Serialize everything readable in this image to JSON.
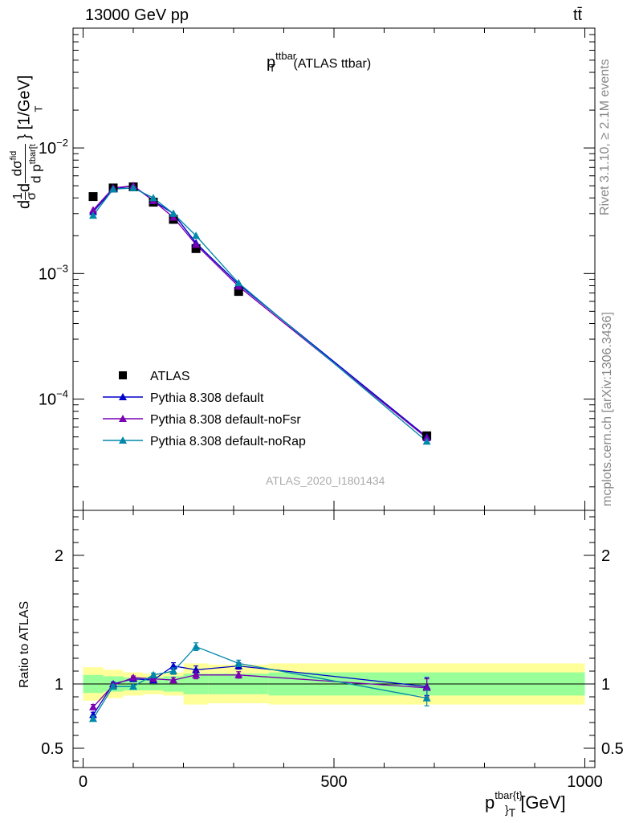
{
  "header": {
    "energy_label": "13000 GeV pp",
    "process_label": "tt̄"
  },
  "side_labels": {
    "rivet": "Rivet 3.1.10, ≥ 2.1M events",
    "mcplots": "mcplots.cern.ch [arXiv:1306.3436]"
  },
  "analysis_label": "ATLAS_2020_I1801434",
  "colors": {
    "atlas": "#000000",
    "default": "#0000cc",
    "noFsr": "#7a00b0",
    "noRap": "#0088aa",
    "band_outer": "#ffff99",
    "band_inner": "#99ff99",
    "analysis_label": "#aaaaaa"
  },
  "chart_data": {
    "type": "line",
    "title": {
      "main": "p",
      "sup": "ttbar",
      "sub": "T",
      "rest": " (ATLAS ttbar)"
    },
    "ylabel": "d1dσdσdp ttbar[t T } [1/GeV]",
    "ylabel_parts": {
      "d": "d",
      "frac1_num": "1",
      "frac1_den": "σ",
      "d2": "d",
      "num": "dσ",
      "num_sup": "fid",
      "den": "d p",
      "den_sub": "tbar[t",
      "den_sup": "T",
      "tail": "} [1/GeV]"
    },
    "xlabel": {
      "main": "p",
      "sup": "tbar{t}",
      "sub": "}",
      "sub2": "T",
      "unit": " [GeV]"
    },
    "ratio_ylabel": "Ratio to ATLAS",
    "xlim": [
      -20,
      1020
    ],
    "ylim": [
      1.3e-05,
      0.09
    ],
    "yscale": "log",
    "ratio_ylim": [
      0.35,
      2.35
    ],
    "x_ticks": [
      0,
      500,
      1000
    ],
    "x_tick_labels": [
      "0",
      "500",
      "1000"
    ],
    "y_ticks": [
      0.0001,
      0.001,
      0.01
    ],
    "y_tick_labels": [
      {
        "base": "10",
        "exp": "−4"
      },
      {
        "base": "10",
        "exp": "−3"
      },
      {
        "base": "10",
        "exp": "−2"
      }
    ],
    "ratio_ticks": [
      0.5,
      1,
      2
    ],
    "ratio_tick_labels": [
      "0.5",
      "1",
      "2"
    ],
    "legend": [
      "ATLAS",
      "Pythia 8.308 default",
      "Pythia 8.308 default-noFsr",
      "Pythia 8.308 default-noRap"
    ],
    "legend_position": "lower-left",
    "bins": [
      0,
      40,
      80,
      120,
      160,
      200,
      250,
      370,
      1000
    ],
    "x": [
      20,
      60,
      100,
      140,
      180,
      225,
      310,
      685
    ],
    "series": [
      {
        "name": "ATLAS",
        "values": [
          0.0041,
          0.0048,
          0.0049,
          0.0037,
          0.0027,
          0.00158,
          0.00072,
          5.1e-05
        ]
      },
      {
        "name": "Pythia 8.308 default",
        "values": [
          0.0031,
          0.0047,
          0.005,
          0.0038,
          0.003,
          0.00175,
          0.00082,
          5e-05
        ]
      },
      {
        "name": "Pythia 8.308 default-noFsr",
        "values": [
          0.0032,
          0.0048,
          0.005,
          0.0038,
          0.0028,
          0.0017,
          0.00079,
          4.9e-05
        ]
      },
      {
        "name": "Pythia 8.308 default-noRap",
        "values": [
          0.0029,
          0.0047,
          0.0048,
          0.004,
          0.003,
          0.002,
          0.00084,
          4.6e-05
        ]
      }
    ],
    "ratio_series": [
      {
        "name": "Pythia 8.308 default",
        "values": [
          0.76,
          1.0,
          1.04,
          1.03,
          1.14,
          1.11,
          1.14,
          0.98
        ],
        "errors": [
          0.02,
          0.015,
          0.012,
          0.015,
          0.025,
          0.03,
          0.025,
          0.07
        ]
      },
      {
        "name": "Pythia 8.308 default-noFsr",
        "values": [
          0.82,
          0.99,
          1.05,
          1.04,
          1.03,
          1.07,
          1.07,
          0.97
        ],
        "errors": [
          0.02,
          0.015,
          0.012,
          0.015,
          0.02,
          0.03,
          0.025,
          0.07
        ]
      },
      {
        "name": "Pythia 8.308 default-noRap",
        "values": [
          0.73,
          0.98,
          0.98,
          1.07,
          1.1,
          1.29,
          1.16,
          0.89
        ],
        "errors": [
          0.02,
          0.015,
          0.012,
          0.015,
          0.025,
          0.03,
          0.025,
          0.06
        ]
      }
    ],
    "ratio_band_outer": [
      0.13,
      0.11,
      0.09,
      0.08,
      0.09,
      0.16,
      0.15,
      0.16
    ],
    "ratio_band_inner": [
      0.07,
      0.06,
      0.05,
      0.05,
      0.06,
      0.08,
      0.08,
      0.09
    ]
  }
}
